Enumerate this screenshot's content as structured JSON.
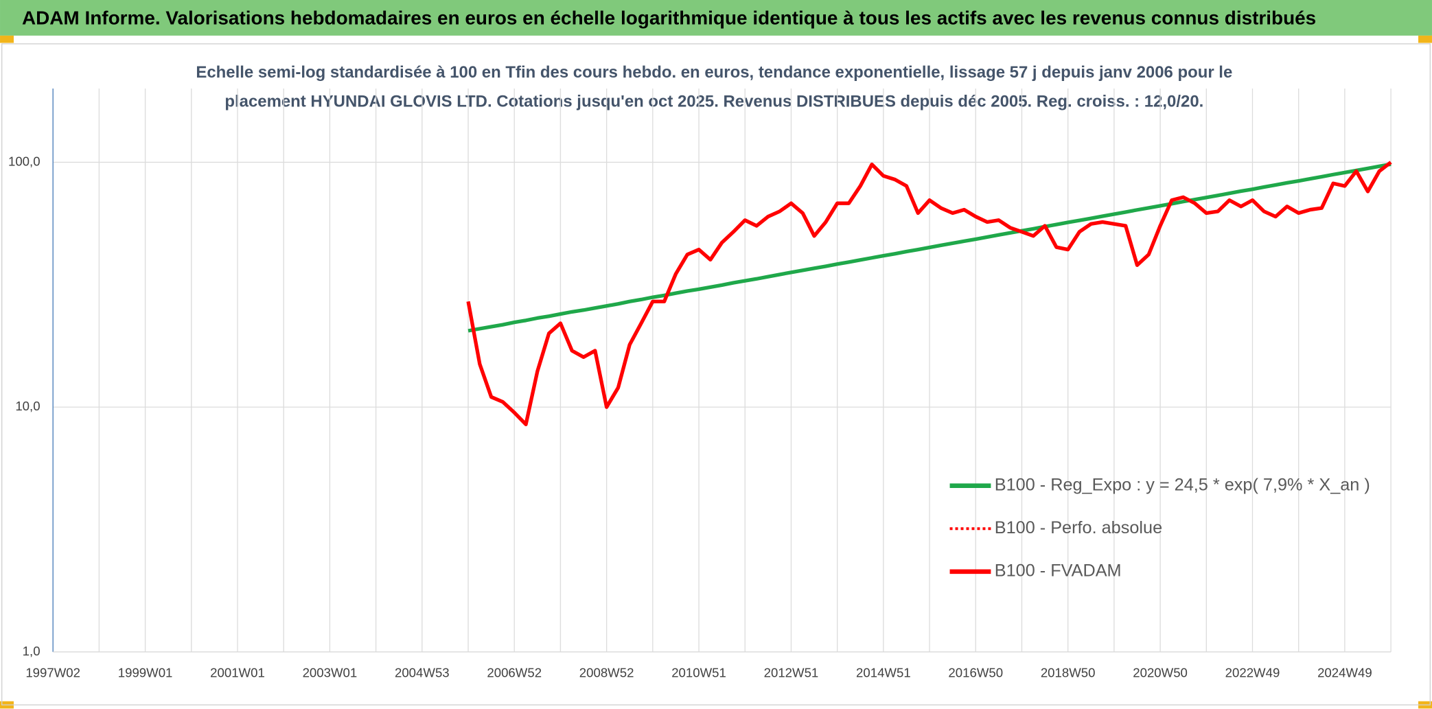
{
  "chart_data": {
    "type": "line",
    "title": "ADAM Informe. Valorisations hebdomadaires en euros en échelle logarithmique identique à tous les actifs avec les revenus connus distribués",
    "subtitle": [
      "Echelle semi-log standardisée à 100 en Tfin des cours hebdo. en euros, tendance exponentielle, lissage 57 j depuis janv 2006 pour le",
      "placement HYUNDAI GLOVIS LTD. Cotations jusqu'en oct 2025. Revenus DISTRIBUES depuis déc 2005. Reg. croiss. : 12,0/20."
    ],
    "categories": [
      "1997W02",
      null,
      null,
      null,
      null,
      null,
      null,
      null,
      "1999W01",
      null,
      null,
      null,
      null,
      null,
      null,
      null,
      "2001W01",
      null,
      null,
      null,
      null,
      null,
      null,
      null,
      "2003W01",
      null,
      null,
      null,
      null,
      null,
      null,
      null,
      "2004W53",
      null,
      null,
      null,
      null,
      null,
      null,
      null,
      "2006W52",
      null,
      null,
      null,
      null,
      null,
      null,
      null,
      "2008W52",
      null,
      null,
      null,
      null,
      null,
      null,
      null,
      "2010W51",
      null,
      null,
      null,
      null,
      null,
      null,
      null,
      "2012W51",
      null,
      null,
      null,
      null,
      null,
      null,
      null,
      "2014W51",
      null,
      null,
      null,
      null,
      null,
      null,
      null,
      "2016W50",
      null,
      null,
      null,
      null,
      null,
      null,
      null,
      "2018W50",
      null,
      null,
      null,
      null,
      null,
      null,
      null,
      "2020W50",
      null,
      null,
      null,
      null,
      null,
      null,
      null,
      "2022W49",
      null,
      null,
      null,
      null,
      null,
      null,
      null,
      "2024W49",
      null,
      null,
      null,
      null
    ],
    "log_scale": true,
    "ylim": [
      1,
      200
    ],
    "yticks": [
      {
        "value": 1,
        "label": "1,0"
      },
      {
        "value": 10,
        "label": "10,0"
      },
      {
        "value": 100,
        "label": "100,0"
      }
    ],
    "grid": true,
    "legend": "lower right",
    "series": [
      {
        "name": "B100 - Reg_Expo : y = 24,5 * exp( 7,9% *  X_an )",
        "color": "#1fa84a",
        "style": "solid",
        "values": [
          null,
          null,
          null,
          null,
          null,
          null,
          null,
          null,
          null,
          null,
          null,
          null,
          null,
          null,
          null,
          null,
          null,
          null,
          null,
          null,
          null,
          null,
          null,
          null,
          null,
          null,
          null,
          null,
          null,
          null,
          null,
          null,
          null,
          null,
          null,
          null,
          20.5,
          20.9,
          21.3,
          21.7,
          22.2,
          22.6,
          23.1,
          23.5,
          24.0,
          24.5,
          24.9,
          25.4,
          25.9,
          26.4,
          27.0,
          27.5,
          28.1,
          28.6,
          29.2,
          29.8,
          30.3,
          30.9,
          31.5,
          32.2,
          32.8,
          33.4,
          34.1,
          34.8,
          35.5,
          36.2,
          36.9,
          37.6,
          38.4,
          39.1,
          39.9,
          40.7,
          41.5,
          42.3,
          43.2,
          44.0,
          44.9,
          45.8,
          46.7,
          47.6,
          48.5,
          49.5,
          50.5,
          51.5,
          52.5,
          53.5,
          54.6,
          55.7,
          56.8,
          57.9,
          59.0,
          60.2,
          61.4,
          62.6,
          63.9,
          65.1,
          66.4,
          67.7,
          69.1,
          70.4,
          71.8,
          73.2,
          74.7,
          76.2,
          77.6,
          79.2,
          80.8,
          82.4,
          83.9,
          85.6,
          87.3,
          89.1,
          90.8,
          92.6,
          94.4,
          96.3,
          98.2
        ]
      },
      {
        "name": "B100 - Perfo. absolue",
        "color": "#ff0000",
        "style": "dotted",
        "values": [
          null,
          null,
          null,
          null,
          null,
          null,
          null,
          null,
          null,
          null,
          null,
          null,
          null,
          null,
          null,
          null,
          null,
          null,
          null,
          null,
          null,
          null,
          null,
          null,
          null,
          null,
          null,
          null,
          null,
          null,
          null,
          null,
          null,
          null,
          null,
          null,
          null,
          null,
          null,
          null,
          null,
          null,
          null,
          null,
          null,
          null,
          null,
          null,
          null,
          null,
          null,
          null,
          null,
          null,
          null,
          null,
          null,
          null,
          null,
          null,
          null,
          null,
          null,
          null,
          null,
          null,
          null,
          null,
          null,
          null,
          null,
          null,
          null,
          null,
          null,
          null,
          null,
          null,
          null,
          null,
          null,
          null,
          null,
          null,
          null,
          null,
          null,
          null,
          null,
          null,
          null,
          null,
          null,
          null,
          null,
          null,
          null,
          null,
          null,
          null,
          null,
          null,
          null,
          null,
          null,
          null,
          null,
          null,
          null,
          null,
          null,
          null,
          null,
          null,
          null,
          null,
          null
        ]
      },
      {
        "name": "B100 - FVADAM",
        "color": "#ff0000",
        "style": "solid",
        "values": [
          null,
          null,
          null,
          null,
          null,
          null,
          null,
          null,
          null,
          null,
          null,
          null,
          null,
          null,
          null,
          null,
          null,
          null,
          null,
          null,
          null,
          null,
          null,
          null,
          null,
          null,
          null,
          null,
          null,
          null,
          null,
          null,
          null,
          null,
          null,
          null,
          27,
          15,
          11,
          10.5,
          9.5,
          8.5,
          14,
          20,
          22,
          17,
          16,
          17,
          10,
          12,
          18,
          22,
          27,
          27,
          35,
          42,
          44,
          40,
          47,
          52,
          58,
          55,
          60,
          63,
          68,
          62,
          50,
          57,
          68,
          68,
          80,
          98,
          88,
          85,
          80,
          62,
          70,
          65,
          62,
          64,
          60,
          57,
          58,
          54,
          52,
          50,
          55,
          45,
          44,
          52,
          56,
          57,
          56,
          55,
          38,
          42,
          55,
          70,
          72,
          68,
          62,
          63,
          70,
          66,
          70,
          63,
          60,
          66,
          62,
          64,
          65,
          82,
          80,
          92,
          76,
          92,
          100
        ]
      }
    ]
  }
}
